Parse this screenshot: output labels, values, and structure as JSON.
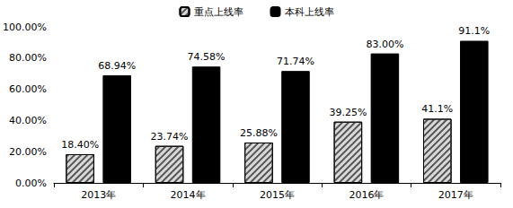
{
  "chart_data": {
    "type": "bar",
    "categories": [
      "2013年",
      "2014年",
      "2015年",
      "2016年",
      "2017年"
    ],
    "series": [
      {
        "name": "重点上线率",
        "color": "#d9d9d9",
        "values": [
          18.4,
          23.74,
          25.88,
          39.25,
          41.1
        ],
        "value_labels": [
          "18.40%",
          "23.74%",
          "25.88%",
          "39.25%",
          "41.1%"
        ]
      },
      {
        "name": "本科上线率",
        "color": "#000000",
        "values": [
          68.94,
          74.58,
          71.74,
          83.0,
          91.1
        ],
        "value_labels": [
          "68.94%",
          "74.58%",
          "71.74%",
          "83.00%",
          "91.1%"
        ]
      }
    ],
    "ylim": [
      0,
      100
    ],
    "yticks": [
      {
        "value": 0,
        "label": "0.00%"
      },
      {
        "value": 20,
        "label": "20.00%"
      },
      {
        "value": 40,
        "label": "40.00%"
      },
      {
        "value": 60,
        "label": "60.00%"
      },
      {
        "value": 80,
        "label": "80.00%"
      },
      {
        "value": 100,
        "label": "100.00%"
      }
    ],
    "grid": false,
    "legend": "top",
    "data_labels": true
  }
}
